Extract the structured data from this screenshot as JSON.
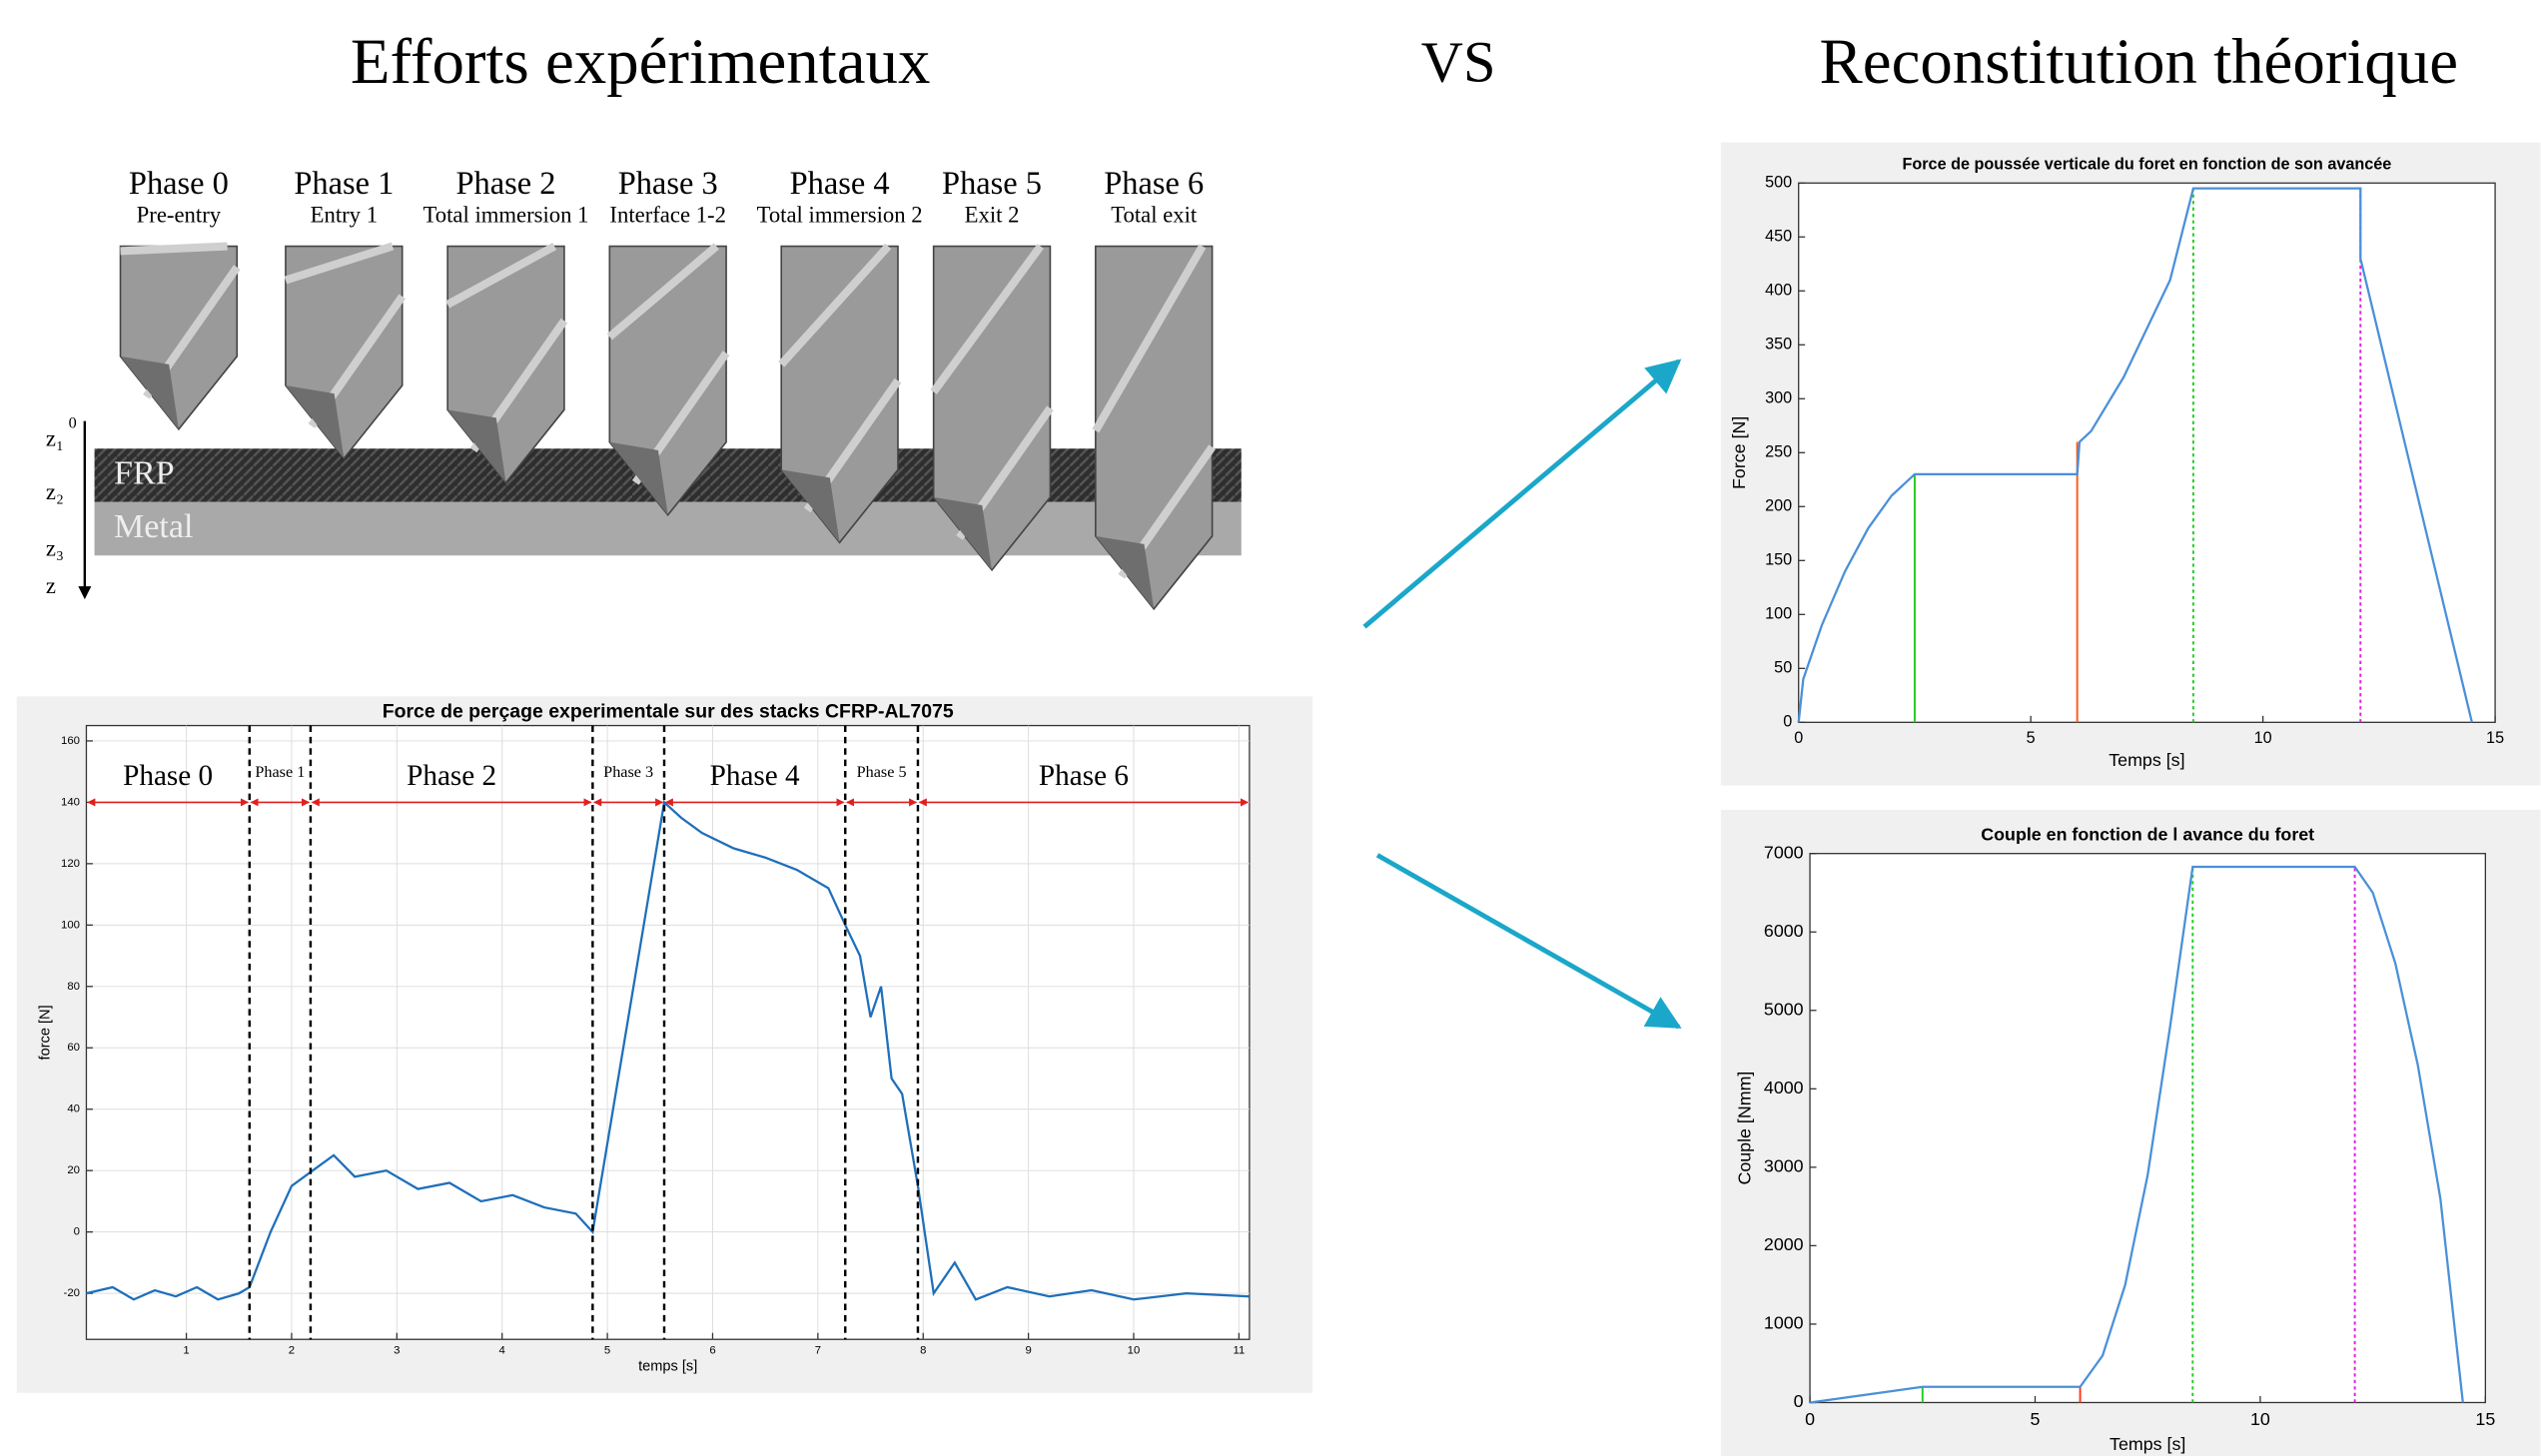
{
  "header": {
    "left_title": "Efforts expérimentaux",
    "vs": "VS",
    "right_title": "Reconstitution théorique"
  },
  "diagram": {
    "phases": [
      {
        "name": "Phase 0",
        "desc": "Pre-entry"
      },
      {
        "name": "Phase 1",
        "desc": "Entry 1"
      },
      {
        "name": "Phase 2",
        "desc": "Total immersion 1"
      },
      {
        "name": "Phase 3",
        "desc": "Interface 1-2"
      },
      {
        "name": "Phase 4",
        "desc": "Total immersion 2"
      },
      {
        "name": "Phase 5",
        "desc": "Exit 2"
      },
      {
        "name": "Phase 6",
        "desc": "Total exit"
      }
    ],
    "layers": [
      "FRP",
      "Metal"
    ],
    "axis_labels": [
      "0",
      "z₁",
      "z₂",
      "z₃",
      "z"
    ]
  },
  "chart_data": [
    {
      "type": "line",
      "title": "Force de perçage experimentale sur des stacks CFRP-AL7075",
      "xlabel": "temps [s]",
      "ylabel": "force [N]",
      "grid": true,
      "xlim": [
        0.05,
        11.1
      ],
      "ylim": [
        -35,
        165
      ],
      "xticks": [
        1,
        2,
        3,
        4,
        5,
        6,
        7,
        8,
        9,
        10,
        11
      ],
      "yticks": [
        -20,
        0,
        20,
        40,
        60,
        80,
        100,
        120,
        140,
        160
      ],
      "series": [
        {
          "color": "#1f6fba",
          "x": [
            0.05,
            0.3,
            0.5,
            0.7,
            0.9,
            1.1,
            1.3,
            1.5,
            1.6,
            1.8,
            2.0,
            2.2,
            2.4,
            2.6,
            2.9,
            3.2,
            3.5,
            3.8,
            4.1,
            4.4,
            4.7,
            4.86,
            5.2,
            5.54,
            5.7,
            5.9,
            6.2,
            6.5,
            6.8,
            7.1,
            7.26,
            7.4,
            7.5,
            7.6,
            7.7,
            7.8,
            7.95,
            8.1,
            8.3,
            8.5,
            8.8,
            9.2,
            9.6,
            10.0,
            10.5,
            11.1
          ],
          "values": [
            -20,
            -18,
            -22,
            -19,
            -21,
            -18,
            -22,
            -20,
            -18,
            0,
            15,
            20,
            25,
            18,
            20,
            14,
            16,
            10,
            12,
            8,
            6,
            0,
            70,
            140,
            135,
            130,
            125,
            122,
            118,
            112,
            100,
            90,
            70,
            80,
            50,
            45,
            15,
            -20,
            -10,
            -22,
            -18,
            -21,
            -19,
            -22,
            -20,
            -21
          ]
        }
      ],
      "phases": {
        "bounds": [
          1.6,
          2.18,
          4.86,
          5.54,
          7.26,
          7.95
        ],
        "labels": [
          "Phase 0",
          "Phase 1",
          "Phase 2",
          "Phase 3",
          "Phase 4",
          "Phase 5",
          "Phase 6"
        ]
      }
    },
    {
      "type": "line",
      "title": "Force de poussée verticale du foret en fonction de son avancée",
      "xlabel": "Temps [s]",
      "ylabel": "Force [N]",
      "grid": false,
      "xlim": [
        0,
        15
      ],
      "ylim": [
        0,
        500
      ],
      "xticks": [
        0,
        5,
        10,
        15
      ],
      "yticks": [
        0,
        50,
        100,
        150,
        200,
        250,
        300,
        350,
        400,
        450,
        500
      ],
      "series": [
        {
          "color": "#4a90d9",
          "x": [
            0,
            0.1,
            0.5,
            1,
            1.5,
            2,
            2.5,
            6,
            6.05,
            6.3,
            7,
            8,
            8.5,
            12.1,
            12.1,
            14.5
          ],
          "values": [
            0,
            40,
            90,
            140,
            180,
            210,
            230,
            230,
            260,
            270,
            320,
            410,
            495,
            495,
            430,
            0
          ]
        }
      ],
      "markers": [
        {
          "x": 2.5,
          "y": 230,
          "color": "#22cc22",
          "dashed": false
        },
        {
          "x": 6,
          "y": 260,
          "color": "#ff5a1a",
          "dashed": false
        },
        {
          "x": 8.5,
          "y": 495,
          "color": "#22cc22",
          "dashed": true
        },
        {
          "x": 12.1,
          "y": 495,
          "color": "#e020e0",
          "dashed": true
        }
      ]
    },
    {
      "type": "line",
      "title": "Couple en fonction de l avance du foret",
      "xlabel": "Temps [s]",
      "ylabel": "Couple [Nmm]",
      "grid": false,
      "xlim": [
        0,
        15
      ],
      "ylim": [
        0,
        7000
      ],
      "xticks": [
        0,
        5,
        10,
        15
      ],
      "yticks": [
        0,
        1000,
        2000,
        3000,
        4000,
        5000,
        6000,
        7000
      ],
      "series": [
        {
          "color": "#4a90d9",
          "x": [
            0,
            2.5,
            6,
            6.5,
            7,
            7.5,
            8,
            8.5,
            12.1,
            12.5,
            13,
            13.5,
            14,
            14.5
          ],
          "values": [
            0,
            200,
            200,
            600,
            1500,
            2900,
            4800,
            6830,
            6830,
            6500,
            5600,
            4300,
            2600,
            0
          ]
        }
      ],
      "markers": [
        {
          "x": 2.5,
          "y": 200,
          "color": "#22cc22",
          "dashed": false
        },
        {
          "x": 6,
          "y": 200,
          "color": "#ff3a1a",
          "dashed": false
        },
        {
          "x": 8.5,
          "y": 6830,
          "color": "#22cc22",
          "dashed": true
        },
        {
          "x": 12.1,
          "y": 6830,
          "color": "#e020e0",
          "dashed": true
        }
      ]
    }
  ]
}
